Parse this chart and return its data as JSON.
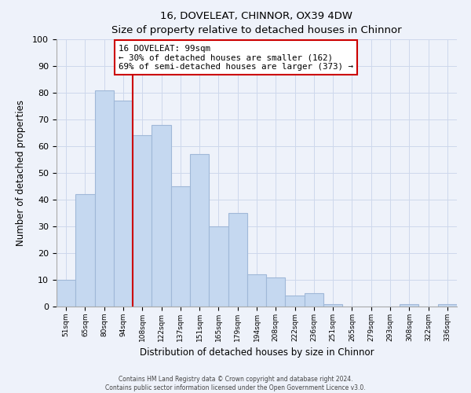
{
  "title": "16, DOVELEAT, CHINNOR, OX39 4DW",
  "subtitle": "Size of property relative to detached houses in Chinnor",
  "xlabel": "Distribution of detached houses by size in Chinnor",
  "ylabel": "Number of detached properties",
  "categories": [
    "51sqm",
    "65sqm",
    "80sqm",
    "94sqm",
    "108sqm",
    "122sqm",
    "137sqm",
    "151sqm",
    "165sqm",
    "179sqm",
    "194sqm",
    "208sqm",
    "222sqm",
    "236sqm",
    "251sqm",
    "265sqm",
    "279sqm",
    "293sqm",
    "308sqm",
    "322sqm",
    "336sqm"
  ],
  "values": [
    10,
    42,
    81,
    77,
    64,
    68,
    45,
    57,
    30,
    35,
    12,
    11,
    4,
    5,
    1,
    0,
    0,
    0,
    1,
    0,
    1
  ],
  "bar_color": "#c5d8f0",
  "bar_edge_color": "#a0b8d8",
  "vline_x_index": 3.5,
  "vline_color": "#cc0000",
  "annotation_line1": "16 DOVELEAT: 99sqm",
  "annotation_line2": "← 30% of detached houses are smaller (162)",
  "annotation_line3": "69% of semi-detached houses are larger (373) →",
  "ylim": [
    0,
    100
  ],
  "yticks": [
    0,
    10,
    20,
    30,
    40,
    50,
    60,
    70,
    80,
    90,
    100
  ],
  "grid_color": "#cdd8ec",
  "background_color": "#eef2fa",
  "footer_line1": "Contains HM Land Registry data © Crown copyright and database right 2024.",
  "footer_line2": "Contains public sector information licensed under the Open Government Licence v3.0."
}
